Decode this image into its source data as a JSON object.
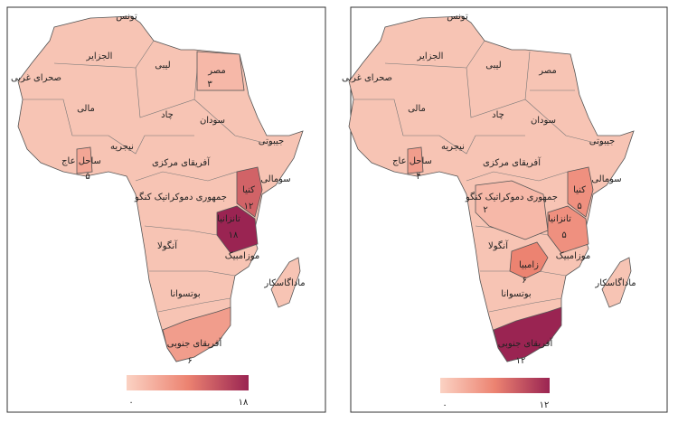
{
  "maps": [
    {
      "countries": [
        {
          "name": "تونس"
        },
        {
          "name": "الجزایر"
        },
        {
          "name": "لیبی"
        },
        {
          "name": "مصر",
          "value": 3,
          "value_label": "۳"
        },
        {
          "name": "صحرای غربی"
        },
        {
          "name": "مالی"
        },
        {
          "name": "چاد"
        },
        {
          "name": "سودان"
        },
        {
          "name": "نیجریه"
        },
        {
          "name": "ساحل عاج",
          "value": 5,
          "value_label": "۵"
        },
        {
          "name": "جیبوتی"
        },
        {
          "name": "آفریقای مرکزی"
        },
        {
          "name": "سومالی"
        },
        {
          "name": "کنیا",
          "value": 12,
          "value_label": "۱۲"
        },
        {
          "name": "جمهوری دموکراتیک کنگو"
        },
        {
          "name": "تانزانیا",
          "value": 18,
          "value_label": "۱۸"
        },
        {
          "name": "آنگولا"
        },
        {
          "name": "موزامبیک"
        },
        {
          "name": "ماداگاسکار"
        },
        {
          "name": "بوتسوانا"
        },
        {
          "name": "آفریقای جنوبی",
          "value": 6,
          "value_label": "۶"
        }
      ],
      "legend": {
        "min": 0,
        "max": 18,
        "min_label": "۰",
        "max_label": "۱۸",
        "colors": [
          "#fbd2c3",
          "#ec8371",
          "#9a2452"
        ]
      }
    },
    {
      "countries": [
        {
          "name": "تونس"
        },
        {
          "name": "الجزایر"
        },
        {
          "name": "لیبی"
        },
        {
          "name": "مصر"
        },
        {
          "name": "صحرای غربی"
        },
        {
          "name": "مالی"
        },
        {
          "name": "چاد"
        },
        {
          "name": "سودان"
        },
        {
          "name": "نیجریه"
        },
        {
          "name": "ساحل عاج",
          "value": 4,
          "value_label": "۴"
        },
        {
          "name": "جیبوتی"
        },
        {
          "name": "آفریقای مرکزی"
        },
        {
          "name": "سومالی"
        },
        {
          "name": "کنیا",
          "value": 5,
          "value_label": "۵"
        },
        {
          "name": "جمهوری دموکراتیک کنگو",
          "value": 2,
          "value_label": "۲"
        },
        {
          "name": "تانزانیا",
          "value": 5,
          "value_label": "۵"
        },
        {
          "name": "آنگولا"
        },
        {
          "name": "موزامبیک"
        },
        {
          "name": "ماداگاسکار"
        },
        {
          "name": "بوتسوانا"
        },
        {
          "name": "آفریقای جنوبی",
          "value": 12,
          "value_label": "۱۲"
        },
        {
          "name": "زامبیا",
          "value": 6,
          "value_label": "۶"
        }
      ],
      "legend": {
        "min": 0,
        "max": 12,
        "min_label": "۰",
        "max_label": "۱۲",
        "colors": [
          "#fbd2c3",
          "#ec8371",
          "#9a2452"
        ]
      }
    }
  ]
}
